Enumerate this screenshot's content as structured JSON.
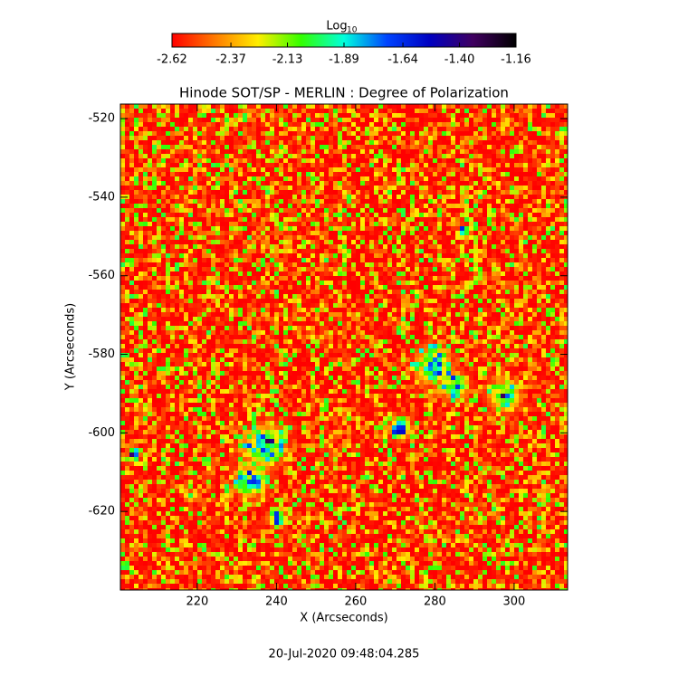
{
  "chart_data": {
    "type": "heatmap",
    "title": "Hinode SOT/SP - MERLIN : Degree of Polarization",
    "xlabel": "X (Arcseconds)",
    "ylabel": "Y (Arcseconds)",
    "xlim": [
      200.6,
      313.5
    ],
    "xticks": [
      220,
      240,
      260,
      280,
      300
    ],
    "ylim": [
      -640,
      -516.3
    ],
    "yticks": [
      -520,
      -540,
      -560,
      -580,
      -600,
      -620
    ],
    "colorbar_label": "Log",
    "colorbar_label_sub": "10",
    "clim": [
      -2.62,
      -1.16
    ],
    "cticks": [
      -2.62,
      -2.37,
      -2.13,
      -1.89,
      -1.64,
      {
        "value": -1.4,
        "label": "-1.40"
      },
      -1.16
    ],
    "colormap": [
      "#ff0000",
      "#ff7a00",
      "#ffee00",
      "#33ff00",
      "#00ffdd",
      "#0044ff",
      "#0000c0",
      "#400060",
      "#000000"
    ],
    "footer": "20-Jul-2020 09:48:04.285"
  }
}
